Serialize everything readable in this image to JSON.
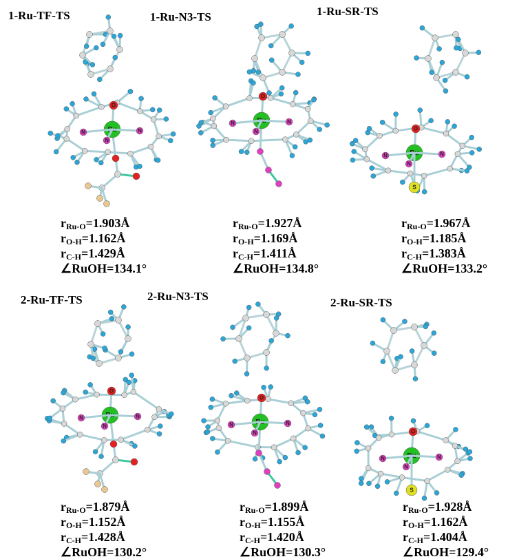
{
  "panels": [
    {
      "title": "1-Ru-TF-TS",
      "atoms": [
        "O",
        "Ru",
        "N",
        "N",
        "N"
      ],
      "params": [
        {
          "symbol": "r",
          "sub": "Ru-O",
          "value": "=1.903Å"
        },
        {
          "symbol": "r",
          "sub": "O-H",
          "value": "=1.162Å"
        },
        {
          "symbol": "r",
          "sub": "C-H",
          "value": "=1.429Å"
        },
        {
          "text": "∠RuOH=134.1°"
        }
      ]
    },
    {
      "title": "1-Ru-N3-TS",
      "atoms": [
        "O",
        "Ru",
        "N",
        "N",
        "N"
      ],
      "params": [
        {
          "symbol": "r",
          "sub": "Ru-O",
          "value": "=1.927Å"
        },
        {
          "symbol": "r",
          "sub": "O-H",
          "value": "=1.169Å"
        },
        {
          "symbol": "r",
          "sub": "C-H",
          "value": "=1.411Å"
        },
        {
          "text": "∠RuOH=134.8°"
        }
      ]
    },
    {
      "title": "1-Ru-SR-TS",
      "atoms": [
        "O",
        "Ru",
        "N",
        "N",
        "N",
        "S"
      ],
      "params": [
        {
          "symbol": "r",
          "sub": "Ru-O",
          "value": "=1.967Å"
        },
        {
          "symbol": "r",
          "sub": "O-H",
          "value": "=1.185Å"
        },
        {
          "symbol": "r",
          "sub": "C-H",
          "value": "=1.383Å"
        },
        {
          "text": "∠RuOH=133.2°"
        }
      ]
    },
    {
      "title": "2-Ru-TF-TS",
      "atoms": [
        "O",
        "Ru",
        "N",
        "N",
        "N"
      ],
      "params": [
        {
          "symbol": "r",
          "sub": "Ru-O",
          "value": "=1.879Å"
        },
        {
          "symbol": "r",
          "sub": "O-H",
          "value": "=1.152Å"
        },
        {
          "symbol": "r",
          "sub": "C-H",
          "value": "=1.428Å"
        },
        {
          "text": "∠RuOH=130.2°"
        }
      ]
    },
    {
      "title": "2-Ru-N3-TS",
      "atoms": [
        "O",
        "Ru",
        "N",
        "N",
        "N"
      ],
      "params": [
        {
          "symbol": "r",
          "sub": "Ru-O",
          "value": "=1.899Å"
        },
        {
          "symbol": "r",
          "sub": "O-H",
          "value": "=1.155Å"
        },
        {
          "symbol": "r",
          "sub": "C-H",
          "value": "=1.420Å"
        },
        {
          "text": "∠RuOH=130.3°"
        }
      ]
    },
    {
      "title": "2-Ru-SR-TS",
      "atoms": [
        "O",
        "Ru",
        "N",
        "N",
        "N",
        "S"
      ],
      "params": [
        {
          "symbol": "r",
          "sub": "Ru-O",
          "value": "=1.928Å"
        },
        {
          "symbol": "r",
          "sub": "O-H",
          "value": "=1.162Å"
        },
        {
          "symbol": "r",
          "sub": "C-H",
          "value": "=1.404Å"
        },
        {
          "text": "∠RuOH=129.4°"
        }
      ]
    }
  ]
}
